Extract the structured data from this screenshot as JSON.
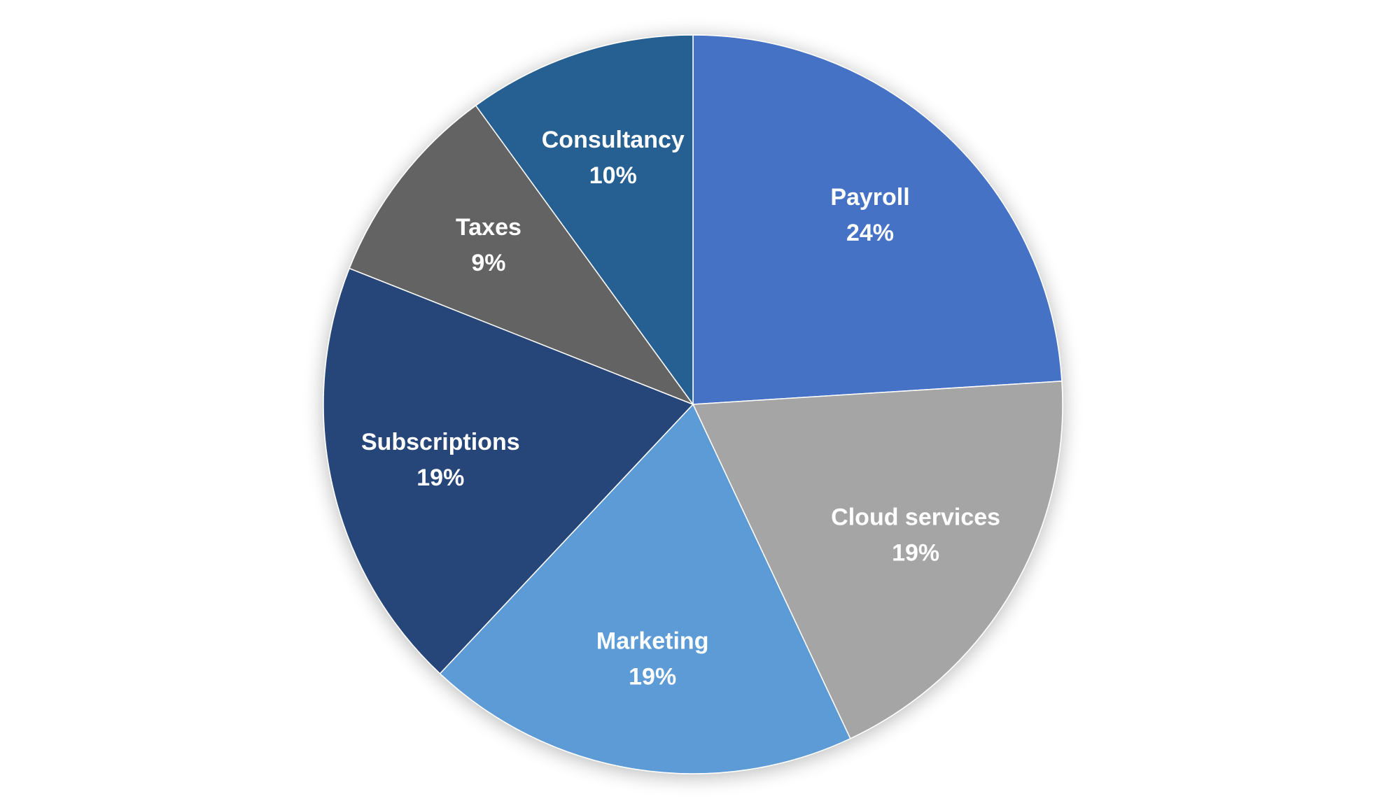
{
  "chart_data": {
    "type": "pie",
    "title": "",
    "start_angle_deg": 0,
    "direction": "clockwise",
    "label_content": "category and percent",
    "slices": [
      {
        "label": "Payroll",
        "value": 24,
        "percent_label": "24%",
        "color": "#4472C4"
      },
      {
        "label": "Cloud services",
        "value": 19,
        "percent_label": "19%",
        "color": "#A5A5A5"
      },
      {
        "label": "Marketing",
        "value": 19,
        "percent_label": "19%",
        "color": "#5B9BD5"
      },
      {
        "label": "Subscriptions",
        "value": 19,
        "percent_label": "19%",
        "color": "#264478"
      },
      {
        "label": "Taxes",
        "value": 9,
        "percent_label": "9%",
        "color": "#636363"
      },
      {
        "label": "Consultancy",
        "value": 10,
        "percent_label": "10%",
        "color": "#255E91"
      }
    ],
    "label_color": "#FFFFFF",
    "legend": "none"
  }
}
